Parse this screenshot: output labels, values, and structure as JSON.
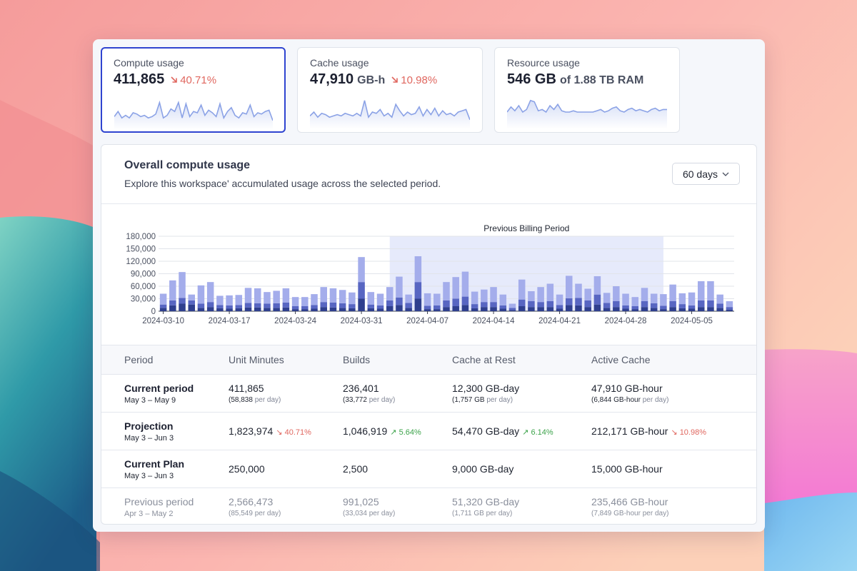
{
  "cards": [
    {
      "label": "Compute usage",
      "value": "411,865",
      "unit": "",
      "delta": "40.71%",
      "delta_dir": "down",
      "spark": [
        0.35,
        0.55,
        0.3,
        0.4,
        0.3,
        0.5,
        0.45,
        0.35,
        0.4,
        0.3,
        0.35,
        0.45,
        0.9,
        0.3,
        0.4,
        0.65,
        0.55,
        0.9,
        0.3,
        0.85,
        0.35,
        0.55,
        0.5,
        0.8,
        0.4,
        0.6,
        0.5,
        0.35,
        0.85,
        0.3,
        0.55,
        0.7,
        0.4,
        0.3,
        0.5,
        0.45,
        0.8,
        0.35,
        0.5,
        0.45,
        0.55,
        0.6,
        0.2
      ]
    },
    {
      "label": "Cache usage",
      "value": "47,910",
      "unit": "GB-h",
      "delta": "10.98%",
      "delta_dir": "down",
      "spark": [
        0.35,
        0.5,
        0.3,
        0.45,
        0.4,
        0.3,
        0.35,
        0.4,
        0.35,
        0.45,
        0.4,
        0.35,
        0.45,
        0.35,
        0.95,
        0.3,
        0.5,
        0.45,
        0.6,
        0.35,
        0.45,
        0.3,
        0.8,
        0.55,
        0.35,
        0.5,
        0.4,
        0.45,
        0.7,
        0.35,
        0.6,
        0.4,
        0.65,
        0.35,
        0.55,
        0.4,
        0.45,
        0.35,
        0.5,
        0.55,
        0.6,
        0.2
      ]
    },
    {
      "label": "Resource usage",
      "value": "546 GB",
      "unit": "of 1.88 TB RAM",
      "delta": "",
      "delta_dir": "",
      "spark": [
        0.5,
        0.7,
        0.55,
        0.75,
        0.5,
        0.6,
        0.95,
        0.9,
        0.55,
        0.6,
        0.5,
        0.75,
        0.6,
        0.8,
        0.55,
        0.5,
        0.5,
        0.55,
        0.5,
        0.5,
        0.5,
        0.5,
        0.5,
        0.55,
        0.6,
        0.5,
        0.55,
        0.65,
        0.7,
        0.55,
        0.5,
        0.6,
        0.65,
        0.55,
        0.6,
        0.55,
        0.5,
        0.6,
        0.65,
        0.55,
        0.6,
        0.6
      ]
    }
  ],
  "main": {
    "title": "Overall compute usage",
    "subtitle": "Explore this workspace' accumulated usage across the selected period.",
    "range_label": "60 days"
  },
  "chart_data": {
    "type": "bar",
    "stacked": true,
    "annotation": "Previous Billing Period",
    "highlight_range": [
      "2024-04-03",
      "2024-05-02"
    ],
    "ylim": [
      0,
      180000
    ],
    "yticks": [
      "180,000",
      "150,000",
      "120,000",
      "90,000",
      "60,000",
      "30,000",
      "0"
    ],
    "xticks": [
      "2024-03-10",
      "2024-03-17",
      "2024-03-24",
      "2024-03-31",
      "2024-04-07",
      "2024-04-14",
      "2024-04-21",
      "2024-04-28",
      "2024-05-05"
    ],
    "series": [
      {
        "values": [
          8000,
          14000,
          18000,
          16000,
          8000,
          10000,
          7000,
          6000,
          7000,
          9000,
          9000,
          8000,
          8000,
          9000,
          5000,
          5000,
          6000,
          10000,
          9000,
          8000,
          7000,
          30000,
          7000,
          6000,
          12000,
          15000,
          8000,
          30000,
          5000,
          5000,
          10000,
          12000,
          15000,
          7000,
          10000,
          10000,
          6000,
          3000,
          12000,
          10000,
          10000,
          10000,
          6000,
          15000,
          14000,
          10000,
          16000,
          8000,
          10000,
          6000,
          5000,
          10000,
          8000,
          5000,
          10000,
          7000,
          6000,
          10000,
          10000,
          8000,
          4000
        ]
      },
      {
        "values": [
          8000,
          12000,
          14000,
          10000,
          10000,
          12000,
          8000,
          8000,
          8000,
          11000,
          10000,
          10000,
          11000,
          12000,
          7000,
          7000,
          9000,
          12000,
          12000,
          11000,
          10000,
          40000,
          9000,
          8000,
          14000,
          18000,
          12000,
          40000,
          8000,
          9000,
          16000,
          18000,
          20000,
          10000,
          12000,
          12000,
          8000,
          5000,
          16000,
          14000,
          12000,
          14000,
          9000,
          16000,
          18000,
          16000,
          24000,
          12000,
          14000,
          8000,
          7000,
          14000,
          11000,
          8000,
          14000,
          10000,
          8000,
          16000,
          16000,
          10000,
          6000
        ]
      },
      {
        "values": [
          26000,
          48000,
          62000,
          14000,
          44000,
          48000,
          22000,
          24000,
          24000,
          36000,
          36000,
          28000,
          30000,
          34000,
          22000,
          22000,
          26000,
          36000,
          34000,
          32000,
          28000,
          60000,
          30000,
          28000,
          32000,
          50000,
          20000,
          62000,
          30000,
          28000,
          44000,
          52000,
          60000,
          30000,
          30000,
          36000,
          26000,
          10000,
          48000,
          24000,
          36000,
          42000,
          25000,
          54000,
          34000,
          28000,
          44000,
          24000,
          36000,
          28000,
          22000,
          32000,
          23000,
          28000,
          40000,
          26000,
          31000,
          46000,
          46000,
          22000,
          14000
        ]
      }
    ],
    "series_colors": [
      "#2f3f8e",
      "#5866c2",
      "#a4adeb"
    ]
  },
  "table": {
    "headers": [
      "Period",
      "Unit Minutes",
      "Builds",
      "Cache at Rest",
      "Active Cache"
    ],
    "rows": [
      {
        "title": "Current period",
        "dates": "May 3 – May 9",
        "c1": "411,865",
        "c1_sub": "(58,838",
        "c2": "236,401",
        "c2_sub": "(33,772",
        "c3": "12,300 GB-day",
        "c3_sub": "(1,757 GB",
        "c4": "47,910 GB-hour",
        "c4_sub": "(6,844 GB-hour",
        "per_day": "per day)"
      },
      {
        "title": "Projection",
        "dates": "May 3 – Jun 3",
        "c1": "1,823,974",
        "c1_delta": "40.71%",
        "c2": "1,046,919",
        "c2_delta": "5.64%",
        "c3": "54,470 GB-day",
        "c3_delta": "6.14%",
        "c4": "212,171 GB-hour",
        "c4_delta": "10.98%"
      },
      {
        "title": "Current Plan",
        "dates": "May 3 – Jun 3",
        "c1": "250,000",
        "c2": "2,500",
        "c3": "9,000 GB-day",
        "c4": "15,000 GB-hour"
      },
      {
        "title": "Previous period",
        "dates": "Apr 3 – May 2",
        "c1": "2,566,473",
        "c1_sub": "(85,549",
        "c2": "991,025",
        "c2_sub": "(33,034",
        "c3": "51,320 GB-day",
        "c3_sub": "(1,711 GB",
        "c4": "235,466 GB-hour",
        "c4_sub": "(7,849 GB-hour",
        "per_day": "per day)"
      }
    ]
  },
  "colors": {
    "accent": "#2f44d0",
    "down": "#e0675f",
    "up": "#3ca34a",
    "spark": "#8ba2e6"
  }
}
